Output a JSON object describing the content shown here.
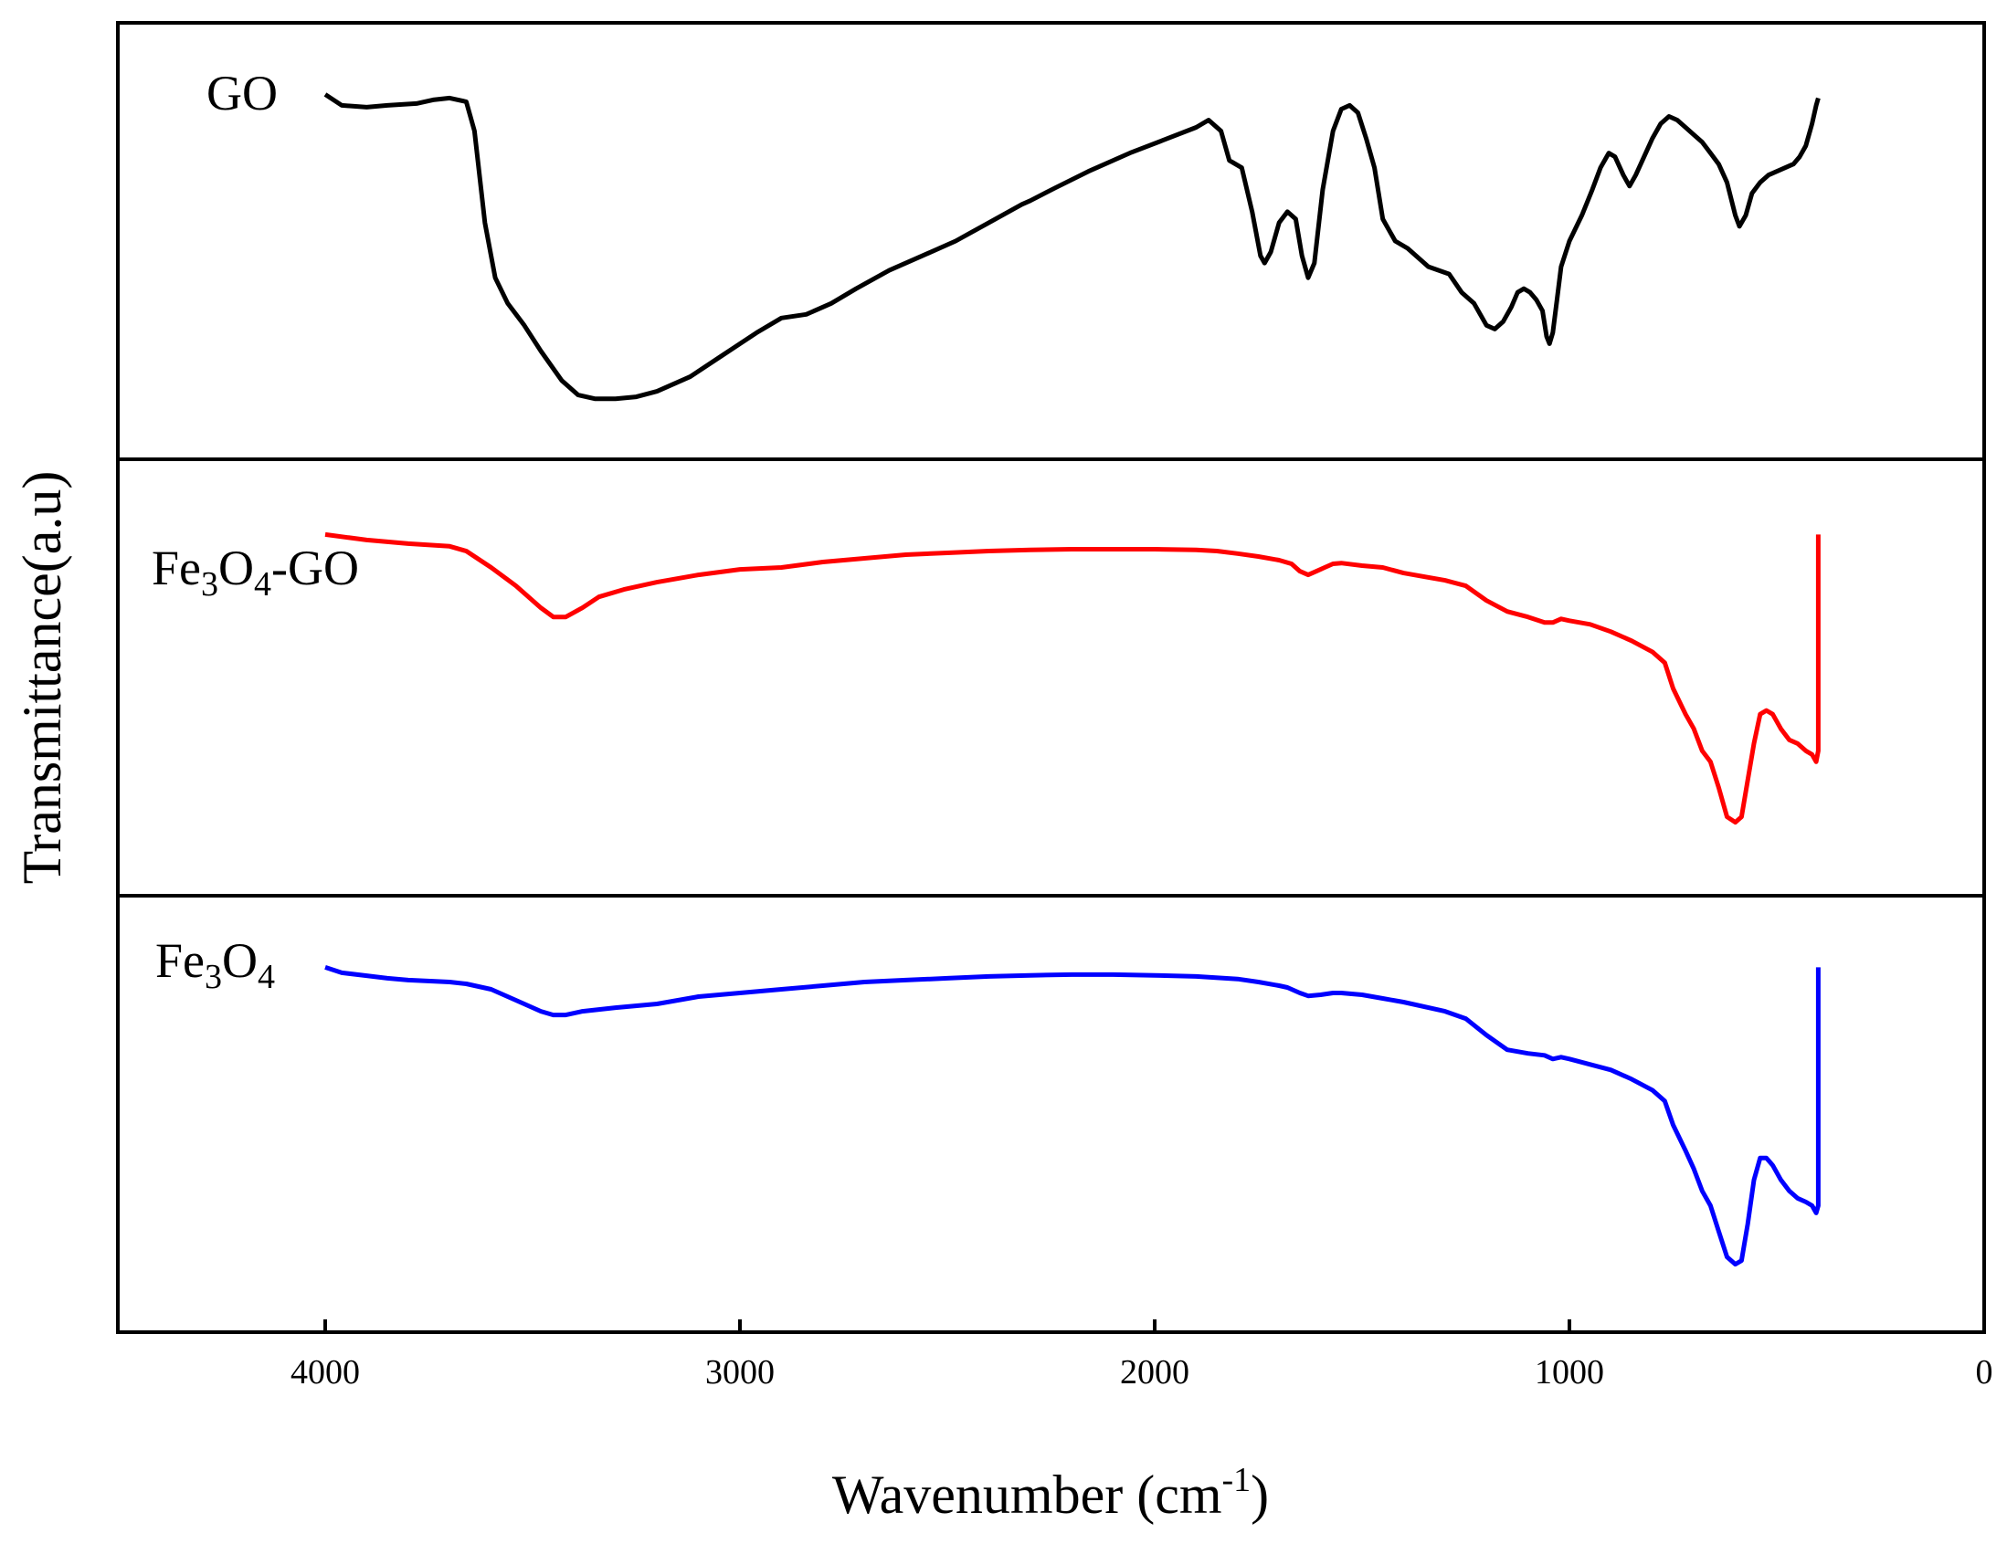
{
  "chart_data": {
    "type": "line",
    "layout": "stacked-panels",
    "title": "",
    "xlabel": "Wavenumber (cm",
    "xlabel_sup": "-1",
    "xlabel_close": ")",
    "ylabel": "Transmittance(a.u)",
    "xlim": [
      4500,
      0
    ],
    "ylim": [
      0,
      1
    ],
    "x_ticks": [
      "4000",
      "3000",
      "2000",
      "1000",
      "0"
    ],
    "x_tick_values": [
      4000,
      3000,
      2000,
      1000,
      0
    ],
    "grid": false,
    "series": [
      {
        "name": "GO",
        "label_parts": [
          {
            "t": "GO",
            "sub": false
          }
        ],
        "color": "#000000",
        "points": [
          [
            4000,
            0.9
          ],
          [
            3960,
            0.87
          ],
          [
            3900,
            0.865
          ],
          [
            3850,
            0.87
          ],
          [
            3780,
            0.875
          ],
          [
            3740,
            0.885
          ],
          [
            3700,
            0.89
          ],
          [
            3660,
            0.88
          ],
          [
            3640,
            0.8
          ],
          [
            3615,
            0.55
          ],
          [
            3590,
            0.4
          ],
          [
            3560,
            0.33
          ],
          [
            3520,
            0.27
          ],
          [
            3480,
            0.2
          ],
          [
            3430,
            0.12
          ],
          [
            3390,
            0.08
          ],
          [
            3350,
            0.07
          ],
          [
            3300,
            0.07
          ],
          [
            3250,
            0.075
          ],
          [
            3200,
            0.09
          ],
          [
            3120,
            0.13
          ],
          [
            3040,
            0.19
          ],
          [
            2960,
            0.25
          ],
          [
            2900,
            0.29
          ],
          [
            2840,
            0.3
          ],
          [
            2780,
            0.33
          ],
          [
            2720,
            0.37
          ],
          [
            2640,
            0.42
          ],
          [
            2560,
            0.46
          ],
          [
            2480,
            0.5
          ],
          [
            2400,
            0.55
          ],
          [
            2320,
            0.6
          ],
          [
            2300,
            0.61
          ],
          [
            2240,
            0.645
          ],
          [
            2160,
            0.69
          ],
          [
            2060,
            0.74
          ],
          [
            1980,
            0.775
          ],
          [
            1900,
            0.81
          ],
          [
            1870,
            0.83
          ],
          [
            1840,
            0.8
          ],
          [
            1820,
            0.72
          ],
          [
            1790,
            0.7
          ],
          [
            1765,
            0.58
          ],
          [
            1745,
            0.46
          ],
          [
            1735,
            0.44
          ],
          [
            1720,
            0.47
          ],
          [
            1700,
            0.55
          ],
          [
            1680,
            0.58
          ],
          [
            1660,
            0.56
          ],
          [
            1645,
            0.46
          ],
          [
            1630,
            0.4
          ],
          [
            1615,
            0.44
          ],
          [
            1595,
            0.64
          ],
          [
            1570,
            0.8
          ],
          [
            1550,
            0.86
          ],
          [
            1530,
            0.87
          ],
          [
            1510,
            0.85
          ],
          [
            1490,
            0.78
          ],
          [
            1470,
            0.7
          ],
          [
            1450,
            0.56
          ],
          [
            1420,
            0.5
          ],
          [
            1390,
            0.48
          ],
          [
            1340,
            0.43
          ],
          [
            1290,
            0.41
          ],
          [
            1260,
            0.36
          ],
          [
            1230,
            0.33
          ],
          [
            1215,
            0.3
          ],
          [
            1200,
            0.27
          ],
          [
            1180,
            0.26
          ],
          [
            1160,
            0.28
          ],
          [
            1140,
            0.32
          ],
          [
            1125,
            0.36
          ],
          [
            1110,
            0.37
          ],
          [
            1095,
            0.36
          ],
          [
            1080,
            0.34
          ],
          [
            1065,
            0.31
          ],
          [
            1055,
            0.24
          ],
          [
            1048,
            0.22
          ],
          [
            1040,
            0.25
          ],
          [
            1030,
            0.34
          ],
          [
            1020,
            0.43
          ],
          [
            1000,
            0.5
          ],
          [
            970,
            0.57
          ],
          [
            945,
            0.64
          ],
          [
            925,
            0.7
          ],
          [
            905,
            0.74
          ],
          [
            890,
            0.73
          ],
          [
            870,
            0.68
          ],
          [
            855,
            0.65
          ],
          [
            840,
            0.68
          ],
          [
            820,
            0.73
          ],
          [
            800,
            0.78
          ],
          [
            780,
            0.82
          ],
          [
            760,
            0.84
          ],
          [
            740,
            0.83
          ],
          [
            720,
            0.81
          ],
          [
            700,
            0.79
          ],
          [
            680,
            0.77
          ],
          [
            660,
            0.74
          ],
          [
            640,
            0.71
          ],
          [
            620,
            0.66
          ],
          [
            600,
            0.57
          ],
          [
            590,
            0.54
          ],
          [
            575,
            0.57
          ],
          [
            560,
            0.63
          ],
          [
            540,
            0.66
          ],
          [
            520,
            0.68
          ],
          [
            500,
            0.69
          ],
          [
            480,
            0.7
          ],
          [
            460,
            0.71
          ],
          [
            445,
            0.73
          ],
          [
            430,
            0.76
          ],
          [
            415,
            0.82
          ],
          [
            405,
            0.87
          ],
          [
            400,
            0.89
          ]
        ]
      },
      {
        "name": "Fe3O4-GO",
        "label_parts": [
          {
            "t": "Fe",
            "sub": false
          },
          {
            "t": "3",
            "sub": true
          },
          {
            "t": "O",
            "sub": false
          },
          {
            "t": "4",
            "sub": true
          },
          {
            "t": "-GO",
            "sub": false
          }
        ],
        "color": "#ff0000",
        "points": [
          [
            4000,
            0.89
          ],
          [
            3900,
            0.875
          ],
          [
            3800,
            0.865
          ],
          [
            3700,
            0.858
          ],
          [
            3660,
            0.845
          ],
          [
            3600,
            0.8
          ],
          [
            3540,
            0.75
          ],
          [
            3480,
            0.69
          ],
          [
            3450,
            0.665
          ],
          [
            3420,
            0.665
          ],
          [
            3380,
            0.69
          ],
          [
            3340,
            0.72
          ],
          [
            3280,
            0.74
          ],
          [
            3200,
            0.76
          ],
          [
            3100,
            0.78
          ],
          [
            3000,
            0.795
          ],
          [
            2900,
            0.8
          ],
          [
            2800,
            0.815
          ],
          [
            2700,
            0.825
          ],
          [
            2600,
            0.835
          ],
          [
            2500,
            0.84
          ],
          [
            2400,
            0.845
          ],
          [
            2300,
            0.848
          ],
          [
            2200,
            0.85
          ],
          [
            2100,
            0.85
          ],
          [
            2000,
            0.85
          ],
          [
            1900,
            0.848
          ],
          [
            1850,
            0.845
          ],
          [
            1800,
            0.838
          ],
          [
            1750,
            0.83
          ],
          [
            1700,
            0.82
          ],
          [
            1670,
            0.81
          ],
          [
            1650,
            0.79
          ],
          [
            1630,
            0.78
          ],
          [
            1610,
            0.79
          ],
          [
            1590,
            0.8
          ],
          [
            1570,
            0.81
          ],
          [
            1550,
            0.812
          ],
          [
            1500,
            0.805
          ],
          [
            1450,
            0.8
          ],
          [
            1400,
            0.785
          ],
          [
            1300,
            0.765
          ],
          [
            1250,
            0.75
          ],
          [
            1200,
            0.71
          ],
          [
            1150,
            0.68
          ],
          [
            1100,
            0.665
          ],
          [
            1060,
            0.65
          ],
          [
            1040,
            0.65
          ],
          [
            1020,
            0.66
          ],
          [
            1000,
            0.655
          ],
          [
            950,
            0.645
          ],
          [
            900,
            0.625
          ],
          [
            850,
            0.6
          ],
          [
            800,
            0.57
          ],
          [
            770,
            0.54
          ],
          [
            750,
            0.47
          ],
          [
            720,
            0.4
          ],
          [
            700,
            0.36
          ],
          [
            680,
            0.3
          ],
          [
            660,
            0.27
          ],
          [
            640,
            0.2
          ],
          [
            620,
            0.12
          ],
          [
            600,
            0.105
          ],
          [
            585,
            0.12
          ],
          [
            570,
            0.22
          ],
          [
            555,
            0.32
          ],
          [
            540,
            0.4
          ],
          [
            525,
            0.41
          ],
          [
            510,
            0.4
          ],
          [
            490,
            0.36
          ],
          [
            470,
            0.33
          ],
          [
            450,
            0.32
          ],
          [
            430,
            0.3
          ],
          [
            415,
            0.29
          ],
          [
            405,
            0.27
          ],
          [
            400,
            0.3
          ],
          [
            400,
            0.89
          ]
        ]
      },
      {
        "name": "Fe3O4",
        "label_parts": [
          {
            "t": "Fe",
            "sub": false
          },
          {
            "t": "3",
            "sub": true
          },
          {
            "t": "O",
            "sub": false
          },
          {
            "t": "4",
            "sub": true
          }
        ],
        "color": "#0000ff",
        "points": [
          [
            4000,
            0.9
          ],
          [
            3960,
            0.885
          ],
          [
            3900,
            0.877
          ],
          [
            3850,
            0.87
          ],
          [
            3800,
            0.865
          ],
          [
            3700,
            0.86
          ],
          [
            3660,
            0.855
          ],
          [
            3600,
            0.84
          ],
          [
            3540,
            0.81
          ],
          [
            3480,
            0.78
          ],
          [
            3450,
            0.77
          ],
          [
            3420,
            0.77
          ],
          [
            3380,
            0.78
          ],
          [
            3300,
            0.79
          ],
          [
            3200,
            0.8
          ],
          [
            3100,
            0.82
          ],
          [
            3000,
            0.83
          ],
          [
            2900,
            0.84
          ],
          [
            2800,
            0.85
          ],
          [
            2700,
            0.86
          ],
          [
            2600,
            0.865
          ],
          [
            2500,
            0.87
          ],
          [
            2400,
            0.875
          ],
          [
            2300,
            0.878
          ],
          [
            2200,
            0.88
          ],
          [
            2100,
            0.88
          ],
          [
            2000,
            0.878
          ],
          [
            1900,
            0.875
          ],
          [
            1800,
            0.868
          ],
          [
            1750,
            0.86
          ],
          [
            1700,
            0.85
          ],
          [
            1680,
            0.845
          ],
          [
            1650,
            0.83
          ],
          [
            1630,
            0.822
          ],
          [
            1600,
            0.825
          ],
          [
            1570,
            0.83
          ],
          [
            1550,
            0.83
          ],
          [
            1500,
            0.825
          ],
          [
            1450,
            0.815
          ],
          [
            1400,
            0.805
          ],
          [
            1300,
            0.78
          ],
          [
            1250,
            0.76
          ],
          [
            1200,
            0.715
          ],
          [
            1150,
            0.675
          ],
          [
            1100,
            0.665
          ],
          [
            1060,
            0.66
          ],
          [
            1040,
            0.65
          ],
          [
            1020,
            0.655
          ],
          [
            1000,
            0.65
          ],
          [
            950,
            0.635
          ],
          [
            900,
            0.62
          ],
          [
            850,
            0.595
          ],
          [
            800,
            0.565
          ],
          [
            770,
            0.535
          ],
          [
            750,
            0.47
          ],
          [
            720,
            0.4
          ],
          [
            700,
            0.35
          ],
          [
            680,
            0.29
          ],
          [
            660,
            0.25
          ],
          [
            640,
            0.18
          ],
          [
            620,
            0.11
          ],
          [
            600,
            0.09
          ],
          [
            585,
            0.1
          ],
          [
            570,
            0.2
          ],
          [
            555,
            0.32
          ],
          [
            540,
            0.38
          ],
          [
            525,
            0.38
          ],
          [
            510,
            0.36
          ],
          [
            490,
            0.32
          ],
          [
            470,
            0.29
          ],
          [
            450,
            0.27
          ],
          [
            430,
            0.26
          ],
          [
            415,
            0.25
          ],
          [
            405,
            0.23
          ],
          [
            400,
            0.25
          ],
          [
            400,
            0.9
          ]
        ]
      }
    ]
  }
}
